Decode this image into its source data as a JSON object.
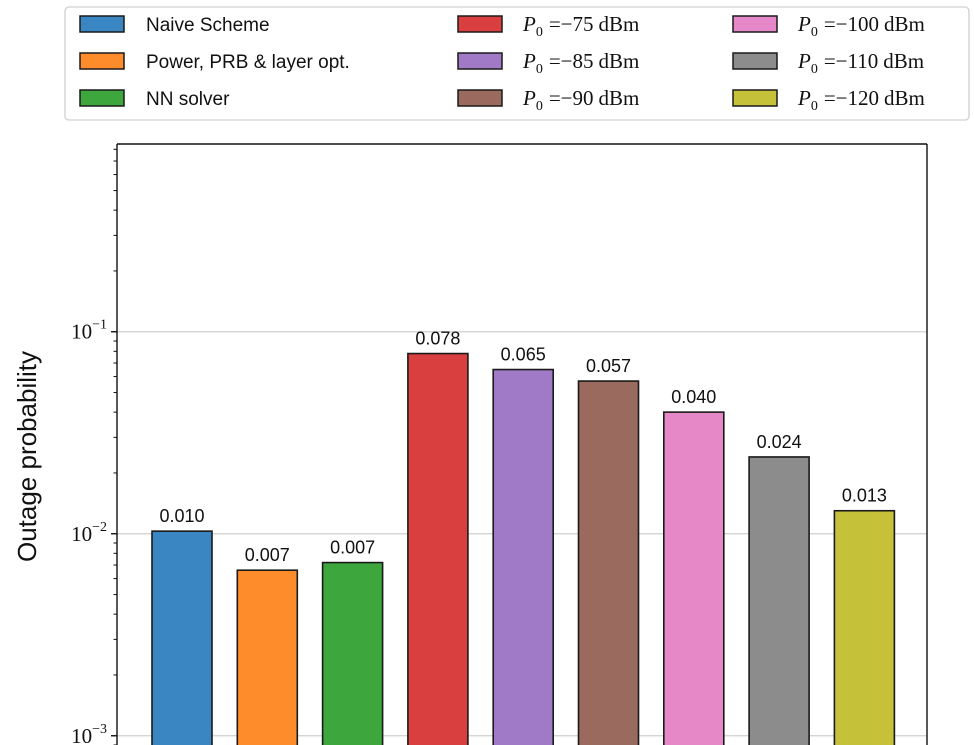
{
  "chart_data": {
    "type": "bar",
    "title": "",
    "xlabel": "",
    "ylabel": "Outage probability",
    "yscale": "log",
    "ylim": [
      0.0009,
      0.85
    ],
    "grid": "y-major",
    "legend_position": "top",
    "yticks": [
      {
        "value": 0.001,
        "base": "10",
        "exp": "−3"
      },
      {
        "value": 0.01,
        "base": "10",
        "exp": "−2"
      },
      {
        "value": 0.1,
        "base": "10",
        "exp": "−1"
      }
    ],
    "bars": [
      {
        "name": "Naive Scheme",
        "value": 0.0103,
        "label": "0.010",
        "color": "#3a86c3"
      },
      {
        "name": "Power, PRB & layer opt.",
        "value": 0.0066,
        "label": "0.007",
        "color": "#ff8c2a"
      },
      {
        "name": "NN solver",
        "value": 0.0072,
        "label": "0.007",
        "color": "#3da63d"
      },
      {
        "name": "P0 = −75 dBm",
        "value": 0.078,
        "label": "0.078",
        "color": "#d93f3f",
        "legend_value": "−75"
      },
      {
        "name": "P0 = −85 dBm",
        "value": 0.065,
        "label": "0.065",
        "color": "#a07ac6",
        "legend_value": "−85"
      },
      {
        "name": "P0 = −90 dBm",
        "value": 0.057,
        "label": "0.057",
        "color": "#9a6a5e",
        "legend_value": "−90"
      },
      {
        "name": "P0 = −100 dBm",
        "value": 0.04,
        "label": "0.040",
        "color": "#e688c8",
        "legend_value": "−100"
      },
      {
        "name": "P0 = −110 dBm",
        "value": 0.024,
        "label": "0.024",
        "color": "#8c8c8c",
        "legend_value": "−110"
      },
      {
        "name": "P0 = −120 dBm",
        "value": 0.013,
        "label": "0.013",
        "color": "#c5c23a",
        "legend_value": "−120"
      }
    ],
    "legend": {
      "plain_entries": [
        "Naive Scheme",
        "Power, PRB & layer opt.",
        "NN solver"
      ],
      "math_prefix": "P",
      "math_subscript": "0",
      "math_equals": "=",
      "math_unit": "dBm"
    }
  }
}
